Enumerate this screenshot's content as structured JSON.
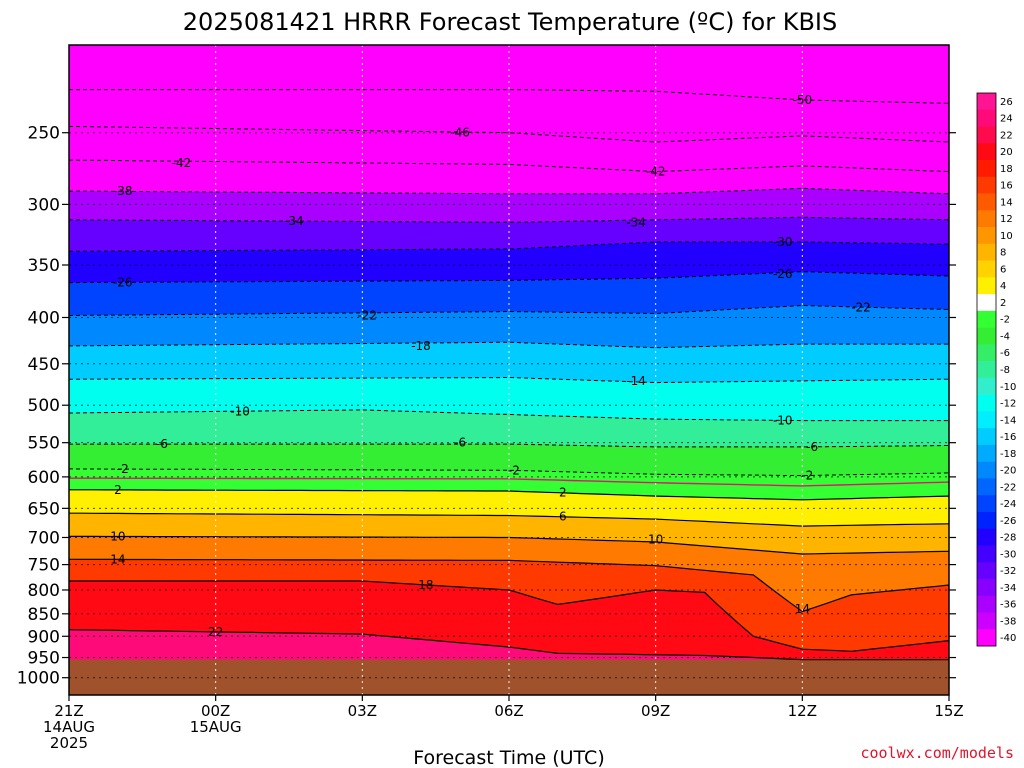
{
  "chart_data": {
    "type": "heatmap",
    "title": "2025081421 HRRR Forecast Temperature (ºC) for KBIS",
    "xlabel": "Forecast Time (UTC)",
    "ylabel": "",
    "credit": "coolwx.com/models",
    "y_scale": "log",
    "ylim": [
      1045,
      200
    ],
    "y_ticks": [
      250,
      300,
      350,
      400,
      450,
      500,
      550,
      600,
      650,
      700,
      750,
      800,
      850,
      900,
      950,
      1000
    ],
    "x_hours_range": [
      0,
      18
    ],
    "x_ticks": [
      {
        "hour": 0,
        "lines": [
          "21Z",
          "14AUG",
          "2025"
        ]
      },
      {
        "hour": 3,
        "lines": [
          "00Z",
          "15AUG"
        ]
      },
      {
        "hour": 6,
        "lines": [
          "03Z"
        ]
      },
      {
        "hour": 9,
        "lines": [
          "06Z"
        ]
      },
      {
        "hour": 12,
        "lines": [
          "09Z"
        ]
      },
      {
        "hour": 15,
        "lines": [
          "12Z"
        ]
      },
      {
        "hour": 18,
        "lines": [
          "15Z"
        ]
      }
    ],
    "surface_pressure_hpa": 955,
    "below_ground_color": "#a0522d",
    "colorbar": {
      "levels": [
        26,
        24,
        22,
        20,
        18,
        16,
        14,
        12,
        10,
        8,
        6,
        4,
        2,
        -2,
        -4,
        -6,
        -8,
        -10,
        -12,
        -14,
        -16,
        -18,
        -20,
        -22,
        -24,
        -26,
        -28,
        -30,
        -32,
        -34,
        -36,
        -38,
        -40
      ],
      "colors": [
        "#ff1493",
        "#ff0a78",
        "#ff0a4c",
        "#ff0a14",
        "#ff1a00",
        "#ff3a00",
        "#ff5a00",
        "#ff7a00",
        "#ff9600",
        "#ffb400",
        "#ffd200",
        "#fff000",
        "#ffffff",
        "#33ff33",
        "#33ee33",
        "#33ee66",
        "#33ee99",
        "#33eecc",
        "#00ffee",
        "#00eeff",
        "#00ccff",
        "#00aaff",
        "#0088ff",
        "#0066ff",
        "#0044ff",
        "#0022ff",
        "#2200ff",
        "#4400ff",
        "#6600ff",
        "#8800ff",
        "#aa00ff",
        "#cc00ff",
        "#ff00ff"
      ]
    },
    "contours": [
      {
        "value": -50,
        "label_at_hour": 15,
        "profile": [
          {
            "hour": 0,
            "p": 224
          },
          {
            "hour": 9,
            "p": 224
          },
          {
            "hour": 12,
            "p": 225
          },
          {
            "hour": 15,
            "p": 230
          },
          {
            "hour": 18,
            "p": 232
          }
        ]
      },
      {
        "value": -46,
        "label_at_hour": 8,
        "profile": [
          {
            "hour": 0,
            "p": 246
          },
          {
            "hour": 9,
            "p": 250
          },
          {
            "hour": 12,
            "p": 256
          },
          {
            "hour": 15,
            "p": 252
          },
          {
            "hour": 18,
            "p": 256
          }
        ]
      },
      {
        "value": -42,
        "label_at_hour": 12,
        "profile": [
          {
            "hour": 0,
            "p": 268
          },
          {
            "hour": 9,
            "p": 271
          },
          {
            "hour": 12,
            "p": 276
          },
          {
            "hour": 15,
            "p": 272
          },
          {
            "hour": 18,
            "p": 276
          }
        ]
      },
      {
        "value": -38,
        "label_at_hour": 1,
        "profile": [
          {
            "hour": 0,
            "p": 290
          },
          {
            "hour": 9,
            "p": 292
          },
          {
            "hour": 12,
            "p": 292
          },
          {
            "hour": 15,
            "p": 288
          },
          {
            "hour": 18,
            "p": 292
          }
        ]
      },
      {
        "value": -34,
        "label_at_hour": 11.5,
        "profile": [
          {
            "hour": 0,
            "p": 312
          },
          {
            "hour": 9,
            "p": 314
          },
          {
            "hour": 12,
            "p": 312
          },
          {
            "hour": 15,
            "p": 310
          },
          {
            "hour": 18,
            "p": 312
          }
        ]
      },
      {
        "value": -30,
        "label_at_hour": 14.5,
        "profile": [
          {
            "hour": 0,
            "p": 338
          },
          {
            "hour": 9,
            "p": 336
          },
          {
            "hour": 12,
            "p": 330
          },
          {
            "hour": 15,
            "p": 330
          },
          {
            "hour": 18,
            "p": 332
          }
        ]
      },
      {
        "value": -26,
        "label_at_hour": 1,
        "profile": [
          {
            "hour": 0,
            "p": 366
          },
          {
            "hour": 9,
            "p": 364
          },
          {
            "hour": 12,
            "p": 362
          },
          {
            "hour": 15,
            "p": 356
          },
          {
            "hour": 18,
            "p": 360
          }
        ]
      },
      {
        "value": -22,
        "label_at_hour": 6,
        "profile": [
          {
            "hour": 0,
            "p": 398
          },
          {
            "hour": 9,
            "p": 394
          },
          {
            "hour": 12,
            "p": 396
          },
          {
            "hour": 15,
            "p": 388
          },
          {
            "hour": 18,
            "p": 392
          }
        ]
      },
      {
        "value": -18,
        "label_at_hour": 7,
        "profile": [
          {
            "hour": 0,
            "p": 430
          },
          {
            "hour": 9,
            "p": 426
          },
          {
            "hour": 12,
            "p": 432
          },
          {
            "hour": 15,
            "p": 428
          },
          {
            "hour": 18,
            "p": 428
          }
        ]
      },
      {
        "value": -14,
        "label_at_hour": 11.5,
        "profile": [
          {
            "hour": 0,
            "p": 468
          },
          {
            "hour": 9,
            "p": 466
          },
          {
            "hour": 12,
            "p": 472
          },
          {
            "hour": 15,
            "p": 470
          },
          {
            "hour": 18,
            "p": 468
          }
        ]
      },
      {
        "value": -10,
        "label_at_hour": 4,
        "profile": [
          {
            "hour": 0,
            "p": 510
          },
          {
            "hour": 6,
            "p": 506
          },
          {
            "hour": 9,
            "p": 512
          },
          {
            "hour": 12,
            "p": 518
          },
          {
            "hour": 15,
            "p": 520
          },
          {
            "hour": 18,
            "p": 520
          }
        ]
      },
      {
        "value": -6,
        "label_at_hour": 2,
        "profile": [
          {
            "hour": 0,
            "p": 552
          },
          {
            "hour": 9,
            "p": 552
          },
          {
            "hour": 12,
            "p": 556
          },
          {
            "hour": 15,
            "p": 556
          },
          {
            "hour": 18,
            "p": 554
          }
        ]
      },
      {
        "value": -2,
        "label_at_hour": 1,
        "profile": [
          {
            "hour": 0,
            "p": 588
          },
          {
            "hour": 9,
            "p": 590
          },
          {
            "hour": 12,
            "p": 596
          },
          {
            "hour": 15,
            "p": 598
          },
          {
            "hour": 18,
            "p": 594
          }
        ]
      },
      {
        "value": 0,
        "label_at_hour": null,
        "profile": [
          {
            "hour": 0,
            "p": 602
          },
          {
            "hour": 9,
            "p": 603
          },
          {
            "hour": 12,
            "p": 609
          },
          {
            "hour": 15,
            "p": 614
          },
          {
            "hour": 18,
            "p": 608
          }
        ]
      },
      {
        "value": 2,
        "label_at_hour": 1,
        "profile": [
          {
            "hour": 0,
            "p": 620
          },
          {
            "hour": 9,
            "p": 622
          },
          {
            "hour": 12,
            "p": 630
          },
          {
            "hour": 15,
            "p": 636
          },
          {
            "hour": 18,
            "p": 630
          }
        ]
      },
      {
        "value": 6,
        "label_at_hour": 9.5,
        "profile": [
          {
            "hour": 0,
            "p": 658
          },
          {
            "hour": 9,
            "p": 662
          },
          {
            "hour": 12,
            "p": 668
          },
          {
            "hour": 15,
            "p": 680
          },
          {
            "hour": 18,
            "p": 676
          }
        ]
      },
      {
        "value": 10,
        "label_at_hour": 12,
        "profile": [
          {
            "hour": 0,
            "p": 698
          },
          {
            "hour": 9,
            "p": 700
          },
          {
            "hour": 12,
            "p": 708
          },
          {
            "hour": 15,
            "p": 730
          },
          {
            "hour": 18,
            "p": 725
          }
        ]
      },
      {
        "value": 14,
        "label_at_hour": 15,
        "profile": [
          {
            "hour": 0,
            "p": 740
          },
          {
            "hour": 9,
            "p": 742
          },
          {
            "hour": 12,
            "p": 752
          },
          {
            "hour": 14,
            "p": 770
          },
          {
            "hour": 15,
            "p": 845
          },
          {
            "hour": 16,
            "p": 810
          },
          {
            "hour": 18,
            "p": 790
          }
        ]
      },
      {
        "value": 18,
        "label_at_hour": 7,
        "profile": [
          {
            "hour": 0,
            "p": 782
          },
          {
            "hour": 6,
            "p": 782
          },
          {
            "hour": 9,
            "p": 800
          },
          {
            "hour": 10,
            "p": 830
          },
          {
            "hour": 11,
            "p": 815
          },
          {
            "hour": 12,
            "p": 800
          },
          {
            "hour": 13,
            "p": 805
          },
          {
            "hour": 14,
            "p": 900
          },
          {
            "hour": 15,
            "p": 930
          },
          {
            "hour": 16,
            "p": 935
          },
          {
            "hour": 18,
            "p": 910
          }
        ]
      },
      {
        "value": 22,
        "label_at_hour": 3,
        "profile": [
          {
            "hour": 0,
            "p": 885
          },
          {
            "hour": 6,
            "p": 895
          },
          {
            "hour": 9,
            "p": 925
          },
          {
            "hour": 10,
            "p": 940
          },
          {
            "hour": 13,
            "p": 945
          },
          {
            "hour": 15,
            "p": 955
          }
        ]
      }
    ],
    "contour_labels": [
      {
        "value": -50,
        "text": "-50",
        "hour": 15,
        "p": 230
      },
      {
        "value": -46,
        "text": "-46",
        "hour": 8,
        "p": 250
      },
      {
        "value": -42,
        "text": "-42",
        "hour": 2.3,
        "p": 270
      },
      {
        "value": -42,
        "text": "-42",
        "hour": 12,
        "p": 276
      },
      {
        "value": -38,
        "text": "-38",
        "hour": 1.1,
        "p": 290
      },
      {
        "value": -34,
        "text": "-34",
        "hour": 4.6,
        "p": 313
      },
      {
        "value": -34,
        "text": "-34",
        "hour": 11.6,
        "p": 314
      },
      {
        "value": -30,
        "text": "-30",
        "hour": 14.6,
        "p": 330
      },
      {
        "value": -26,
        "text": "-26",
        "hour": 1.1,
        "p": 366
      },
      {
        "value": -26,
        "text": "-26",
        "hour": 14.6,
        "p": 358
      },
      {
        "value": -22,
        "text": "-22",
        "hour": 6.1,
        "p": 398
      },
      {
        "value": -22,
        "text": "-22",
        "hour": 16.2,
        "p": 390
      },
      {
        "value": -18,
        "text": "-18",
        "hour": 7.2,
        "p": 430
      },
      {
        "value": -14,
        "text": "-14",
        "hour": 11.6,
        "p": 470
      },
      {
        "value": -10,
        "text": "-10",
        "hour": 3.5,
        "p": 508
      },
      {
        "value": -10,
        "text": "-10",
        "hour": 14.6,
        "p": 520
      },
      {
        "value": -6,
        "text": "-6",
        "hour": 1.9,
        "p": 552
      },
      {
        "value": -6,
        "text": "-6",
        "hour": 8,
        "p": 550
      },
      {
        "value": -6,
        "text": "-6",
        "hour": 15.2,
        "p": 556
      },
      {
        "value": -2,
        "text": "-2",
        "hour": 1.1,
        "p": 588
      },
      {
        "value": -2,
        "text": "-2",
        "hour": 9.1,
        "p": 590
      },
      {
        "value": -2,
        "text": "-2",
        "hour": 15.1,
        "p": 598
      },
      {
        "value": 2,
        "text": "2",
        "hour": 1,
        "p": 620
      },
      {
        "value": 2,
        "text": "2",
        "hour": 10.1,
        "p": 624
      },
      {
        "value": 6,
        "text": "6",
        "hour": 10.1,
        "p": 664
      },
      {
        "value": 10,
        "text": "10",
        "hour": 1,
        "p": 698
      },
      {
        "value": 10,
        "text": "10",
        "hour": 12,
        "p": 704
      },
      {
        "value": 14,
        "text": "14",
        "hour": 1,
        "p": 740
      },
      {
        "value": 14,
        "text": "14",
        "hour": 15,
        "p": 840
      },
      {
        "value": 18,
        "text": "18",
        "hour": 7.3,
        "p": 790
      },
      {
        "value": 22,
        "text": "22",
        "hour": 3,
        "p": 890
      }
    ]
  }
}
